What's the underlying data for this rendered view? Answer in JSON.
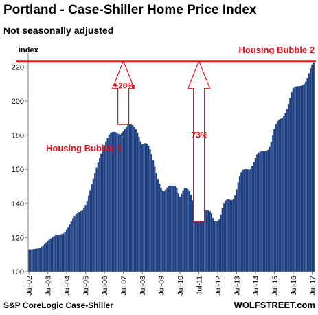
{
  "title": "Portland - Case-Shiller Home Price Index",
  "subtitle": "Not seasonally adjusted",
  "source": "S&P CoreLogic Case-Shiller",
  "brand": "WOLFSTREET.com",
  "colors": {
    "bar": "#1f3d7a",
    "bar_edge": "#4a6fb5",
    "annotation": "#e8101c",
    "axis": "#7f7f7f"
  },
  "chart_data": {
    "type": "bar",
    "ylabel": "index",
    "ylim": [
      100,
      225
    ],
    "yticks": [
      100,
      120,
      140,
      160,
      180,
      200,
      220
    ],
    "grid": false,
    "start": "Jul-02",
    "xtick_labels": [
      "Jul-02",
      "Jul-03",
      "Jul-04",
      "Jul-05",
      "Jul-06",
      "Jul-07",
      "Jul-08",
      "Jul-09",
      "Jul-10",
      "Jul-11",
      "Jul-12",
      "Jul-13",
      "Jul-14",
      "Jul-15",
      "Jul-16",
      "Jul-17"
    ],
    "values": [
      113.0,
      113.0,
      113.0,
      113.2,
      113.3,
      113.4,
      113.6,
      114.0,
      114.6,
      115.3,
      116.1,
      117.0,
      118.0,
      118.8,
      119.5,
      120.2,
      120.8,
      121.2,
      121.5,
      121.7,
      121.8,
      122.0,
      122.4,
      123.2,
      124.5,
      126.0,
      127.7,
      129.5,
      131.2,
      132.6,
      133.7,
      134.5,
      135.0,
      135.4,
      136.0,
      137.2,
      139.0,
      141.5,
      144.5,
      147.8,
      151.2,
      154.5,
      157.8,
      161.0,
      164.0,
      166.5,
      169.0,
      171.5,
      174.0,
      176.3,
      178.5,
      180.2,
      181.3,
      181.8,
      181.9,
      181.7,
      181.2,
      180.6,
      180.4,
      181.0,
      182.2,
      183.6,
      184.9,
      185.8,
      186.2,
      186.2,
      185.8,
      184.9,
      183.5,
      181.5,
      178.9,
      176.3,
      174.6,
      174.9,
      175.3,
      175.0,
      173.8,
      171.7,
      168.8,
      165.3,
      161.5,
      157.7,
      154.3,
      151.5,
      149.2,
      147.6,
      147.1,
      148.1,
      149.3,
      150.2,
      150.4,
      150.4,
      150.3,
      150.0,
      148.7,
      145.8,
      143.9,
      145.6,
      147.7,
      148.8,
      148.9,
      148.3,
      147.2,
      145.0,
      141.8,
      138.4,
      135.8,
      134.2,
      133.3,
      133.0,
      133.6,
      134.9,
      135.8,
      136.0,
      135.8,
      135.3,
      134.2,
      131.4,
      129.7,
      129.4,
      129.6,
      130.5,
      133.6,
      137.3,
      140.2,
      141.7,
      142.3,
      142.3,
      142.1,
      141.8,
      142.5,
      144.6,
      148.2,
      152.2,
      155.9,
      158.3,
      159.7,
      160.2,
      160.2,
      160.0,
      159.9,
      160.3,
      161.8,
      164.2,
      166.8,
      168.7,
      169.8,
      170.3,
      170.5,
      170.6,
      170.7,
      170.8,
      171.4,
      173.1,
      176.0,
      179.8,
      183.6,
      186.5,
      188.2,
      189.1,
      189.6,
      190.2,
      191.2,
      192.8,
      195.2,
      198.3,
      201.8,
      205.2,
      207.5,
      208.3,
      208.6,
      208.7,
      208.8,
      209.0,
      209.4,
      210.1,
      211.4,
      213.5,
      216.3,
      219.3,
      221.4,
      222.6
    ],
    "horizontal_line": 223.5,
    "annotations": [
      {
        "text": "Housing Bubble 1",
        "anchor": "left"
      },
      {
        "text": "Housing Bubble 2",
        "anchor": "right"
      },
      {
        "text": "+20%",
        "from": 186.2,
        "to": 223.5,
        "at": "Jul-07"
      },
      {
        "text": "73%",
        "from": 129.4,
        "to": 223.5,
        "at": "Jul-11"
      }
    ]
  }
}
